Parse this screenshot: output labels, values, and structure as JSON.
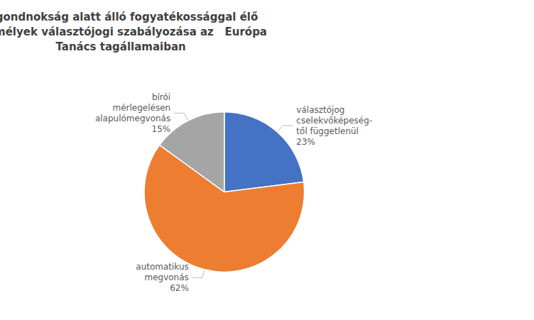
{
  "chart_data": {
    "type": "pie",
    "title": "A gondnokság alatt álló fogyatékossággal élő\nszemélyek választójogi szabályozása az   Európa\nTanács tagállamaiban",
    "categories": [
      "választójog\ncselekvőképeség-\ntől függetlenül",
      "automatikus\nmegvonás",
      "bírói\nmérlegelésen\nalapulómegvonás"
    ],
    "values": [
      23,
      62,
      15
    ],
    "value_labels": [
      "23%",
      "62%",
      "15%"
    ],
    "data_labels": true,
    "colors": [
      "#4472C4",
      "#ED7D31",
      "#A5A5A5"
    ]
  }
}
